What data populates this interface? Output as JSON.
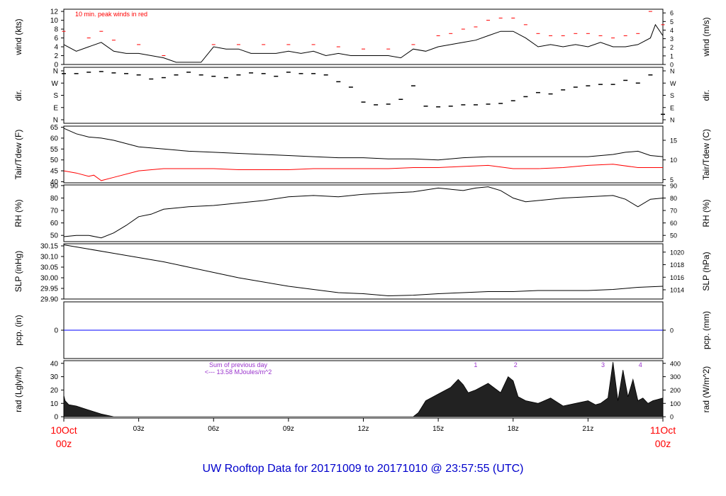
{
  "chart_data": {
    "type": "line",
    "title": "UW Rooftop Data for 20171009  to  20171010 @ 23:57:55  (UTC)",
    "x_ticks": [
      {
        "hour": 0,
        "label": "10Oct",
        "label2": "00z",
        "highlight": true
      },
      {
        "hour": 3,
        "label": "03z"
      },
      {
        "hour": 6,
        "label": "06z"
      },
      {
        "hour": 9,
        "label": "09z"
      },
      {
        "hour": 12,
        "label": "12z"
      },
      {
        "hour": 15,
        "label": "15z"
      },
      {
        "hour": 18,
        "label": "18z"
      },
      {
        "hour": 21,
        "label": "21z"
      },
      {
        "hour": 24,
        "label": "11Oct",
        "label2": "00z",
        "highlight": true
      }
    ],
    "panels": [
      {
        "id": "wind",
        "ylabel": "wind (kts)",
        "ylabel_right": "wind (m/s)",
        "ylim": [
          0,
          12.5
        ],
        "left_ticks": [
          "0",
          "2",
          "4",
          "6",
          "8",
          "10",
          "12"
        ],
        "right_ticks": [
          "0",
          "1",
          "2",
          "3",
          "4",
          "5",
          "6"
        ],
        "right_scale": 0.5144,
        "annotation": "10 min. peak winds in red",
        "series": [
          {
            "name": "wind",
            "color": "#000000",
            "x": [
              0,
              0.5,
              1,
              1.5,
              2,
              2.5,
              3,
              3.5,
              4,
              4.5,
              5,
              5.5,
              6,
              6.5,
              7,
              7.5,
              8,
              8.5,
              9,
              9.5,
              10,
              10.5,
              11,
              11.5,
              12,
              12.5,
              13,
              13.5,
              14,
              14.5,
              15,
              15.5,
              16,
              16.5,
              17,
              17.5,
              18,
              18.5,
              19,
              19.5,
              20,
              20.5,
              21,
              21.5,
              22,
              22.5,
              23,
              23.5,
              23.7,
              24
            ],
            "y": [
              4.5,
              3,
              4,
              5,
              3,
              2.5,
              2.5,
              2,
              1.5,
              0.5,
              0.5,
              0.5,
              4,
              3.5,
              3.5,
              2.5,
              2.5,
              2.5,
              3,
              2.5,
              3,
              2,
              2.5,
              2,
              2,
              2,
              2,
              1.5,
              3.5,
              3,
              4,
              4.5,
              5,
              5.5,
              6.5,
              7.5,
              7.5,
              6,
              4,
              4.5,
              4,
              4.5,
              4,
              5,
              4,
              4,
              4.5,
              6,
              9,
              6.5
            ]
          },
          {
            "name": "peak",
            "color": "#ff0000",
            "x": [
              0,
              1,
              1.5,
              2,
              3,
              4,
              6,
              7,
              8,
              9,
              10,
              11,
              12,
              13,
              14,
              15,
              15.5,
              16,
              16.5,
              17,
              17.5,
              18,
              18.5,
              19,
              19.5,
              20,
              20.5,
              21,
              21.5,
              22,
              22.5,
              23,
              23.5,
              24
            ],
            "y": [
              7.5,
              6,
              7.5,
              5.5,
              4.5,
              2,
              4.5,
              4.5,
              4.5,
              4.5,
              4.5,
              4,
              3.5,
              3.5,
              4.5,
              6.5,
              7,
              8,
              8.5,
              10,
              10.5,
              10.5,
              9,
              7,
              6.5,
              6.5,
              7,
              7,
              6.5,
              6,
              6.5,
              7,
              12,
              9
            ]
          }
        ]
      },
      {
        "id": "dir",
        "ylabel": "dir.",
        "ylabel_right": "dir.",
        "ylim": [
          -5,
          365
        ],
        "left_ticks": [
          "N",
          "W",
          "S",
          "E",
          "N"
        ],
        "right_ticks": [
          "N",
          "W",
          "S",
          "E",
          "N"
        ],
        "series": [
          {
            "name": "direction",
            "color": "#000000",
            "x": [
              0,
              0.5,
              1,
              1.5,
              2,
              2.5,
              3,
              3.5,
              4,
              4.5,
              5,
              5.5,
              6,
              6.5,
              7,
              7.5,
              8,
              8.5,
              9,
              9.5,
              10,
              10.5,
              11,
              11.5,
              12,
              12.5,
              13,
              13.5,
              14,
              14.5,
              15,
              15.5,
              16,
              16.5,
              17,
              17.5,
              18,
              18.5,
              19,
              19.5,
              20,
              20.5,
              21,
              21.5,
              22,
              22.5,
              23,
              23.5,
              24
            ],
            "y": [
              340,
              340,
              350,
              355,
              345,
              340,
              330,
              300,
              310,
              330,
              350,
              330,
              320,
              310,
              330,
              345,
              340,
              320,
              350,
              340,
              340,
              330,
              280,
              240,
              130,
              110,
              115,
              150,
              250,
              100,
              95,
              100,
              110,
              110,
              115,
              120,
              140,
              170,
              200,
              190,
              220,
              240,
              250,
              260,
              260,
              290,
              270,
              330,
              40
            ]
          }
        ]
      },
      {
        "id": "temp",
        "ylabel": "Tair/Tdew (F)",
        "ylabel_right": "Tair/Tdew (C)",
        "ylim": [
          39.5,
          65.5
        ],
        "left_ticks": [
          "40",
          "45",
          "50",
          "55",
          "60",
          "65"
        ],
        "right_ticks": [
          "5",
          "10",
          "15"
        ],
        "series": [
          {
            "name": "Tair",
            "color": "#000000",
            "x": [
              0,
              0.5,
              1,
              1.5,
              2,
              3,
              4,
              5,
              6,
              7,
              8,
              9,
              10,
              11,
              12,
              13,
              14,
              15,
              16,
              17,
              18,
              19,
              20,
              21,
              22,
              22.5,
              23,
              23.5,
              24
            ],
            "y": [
              64.5,
              62,
              60.5,
              60,
              59,
              56,
              55,
              54,
              53.5,
              53,
              52.5,
              52,
              51.5,
              51,
              51,
              50.5,
              50.5,
              50,
              51,
              51.5,
              51.5,
              51.5,
              51.5,
              51.5,
              52.5,
              53.5,
              54,
              52,
              51.5
            ]
          },
          {
            "name": "Tdew",
            "color": "#ff0000",
            "x": [
              0,
              0.5,
              1,
              1.2,
              1.5,
              2,
              3,
              4,
              5,
              6,
              7,
              8,
              9,
              10,
              11,
              12,
              13,
              14,
              15,
              16,
              17,
              18,
              19,
              20,
              21,
              22,
              23,
              24
            ],
            "y": [
              45,
              44,
              42.5,
              43,
              40.5,
              42,
              45,
              46,
              46,
              46,
              45.5,
              45.5,
              45.5,
              46,
              46,
              46,
              46,
              46.5,
              46.5,
              47,
              47.5,
              46,
              46,
              46.5,
              47.5,
              48,
              46.5,
              46.5
            ]
          }
        ]
      },
      {
        "id": "rh",
        "ylabel": "RH (%)",
        "ylabel_right": "RH (%)",
        "ylim": [
          45,
          90.5
        ],
        "left_ticks": [
          "50",
          "60",
          "70",
          "80",
          "90"
        ],
        "right_ticks": [
          "50",
          "60",
          "70",
          "80",
          "90"
        ],
        "series": [
          {
            "name": "RH",
            "color": "#000000",
            "x": [
              0,
              0.5,
              1,
              1.5,
              2,
              2.5,
              3,
              3.5,
              4,
              5,
              6,
              7,
              8,
              9,
              10,
              11,
              12,
              13,
              14,
              15,
              16,
              16.5,
              17,
              17.5,
              18,
              18.5,
              19,
              20,
              21,
              22,
              22.5,
              23,
              23.5,
              24
            ],
            "y": [
              49,
              50,
              50,
              48,
              52,
              58,
              65,
              67,
              71,
              73,
              74,
              76,
              78,
              81,
              82,
              81,
              83,
              84,
              85,
              88,
              86,
              88,
              89,
              86,
              80,
              77,
              78,
              80,
              81,
              82,
              79,
              73,
              79,
              80
            ]
          }
        ]
      },
      {
        "id": "slp",
        "ylabel": "SLP (inHg)",
        "ylabel_right": "SLP (hPa)",
        "ylim": [
          29.9,
          30.16
        ],
        "left_ticks": [
          "29.90",
          "29.95",
          "30.00",
          "30.05",
          "30.10",
          "30.15"
        ],
        "right_ticks": [
          "1014",
          "1016",
          "1018",
          "1020"
        ],
        "series": [
          {
            "name": "SLP",
            "color": "#000000",
            "x": [
              0,
              1,
              2,
              3,
              4,
              5,
              6,
              7,
              8,
              9,
              10,
              11,
              12,
              13,
              14,
              15,
              16,
              17,
              18,
              19,
              20,
              21,
              22,
              23,
              24
            ],
            "y": [
              30.155,
              30.135,
              30.115,
              30.095,
              30.075,
              30.05,
              30.025,
              30.0,
              29.98,
              29.96,
              29.945,
              29.93,
              29.925,
              29.915,
              29.918,
              29.925,
              29.93,
              29.935,
              29.935,
              29.94,
              29.94,
              29.94,
              29.945,
              29.955,
              29.96
            ]
          }
        ]
      },
      {
        "id": "pcp",
        "ylabel": "pcp. (in)",
        "ylabel_right": "pcp. (mm)",
        "ylim": [
          -1,
          1
        ],
        "left_ticks": [
          "0"
        ],
        "right_ticks": [
          "0"
        ],
        "series": [
          {
            "name": "precip",
            "color": "#0000ff",
            "x": [
              0,
              24
            ],
            "y": [
              0,
              0
            ]
          }
        ]
      },
      {
        "id": "rad",
        "ylabel": "rad (Lgly/hr)",
        "ylabel_right": "rad (W/m^2)",
        "ylim": [
          -1,
          42
        ],
        "left_ticks": [
          "0",
          "10",
          "20",
          "30",
          "40"
        ],
        "right_ticks": [
          "0",
          "100",
          "200",
          "300",
          "400"
        ],
        "annotation_lines": [
          "Sum of previous day",
          "<--- 13.58 MJoules/m^2"
        ],
        "markers": [
          "1",
          "2",
          "3",
          "4"
        ],
        "series": [
          {
            "name": "radiation",
            "color": "#000000",
            "x": [
              0,
              0.05,
              0.2,
              0.5,
              1,
              1.5,
              2,
              14,
              14.2,
              14.5,
              15,
              15.5,
              15.8,
              16,
              16.2,
              16.5,
              17,
              17.5,
              17.8,
              18,
              18.2,
              18.5,
              19,
              19.5,
              20,
              20.5,
              21,
              21.3,
              21.5,
              21.8,
              22,
              22.2,
              22.4,
              22.6,
              22.8,
              23,
              23.2,
              23.4,
              23.6,
              23.8,
              24
            ],
            "y": [
              16,
              12,
              9,
              8,
              5,
              2,
              0,
              0,
              3,
              12,
              17,
              22,
              28,
              24,
              18,
              20,
              25,
              18,
              30,
              27,
              15,
              12,
              10,
              14,
              8,
              10,
              12,
              9,
              10,
              14,
              41,
              12,
              35,
              15,
              28,
              12,
              14,
              10,
              12,
              13,
              14
            ]
          }
        ]
      }
    ]
  }
}
